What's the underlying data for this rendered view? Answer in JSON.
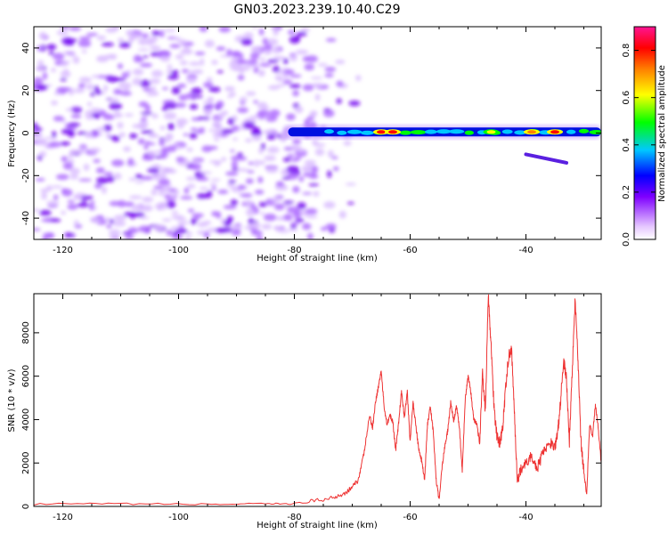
{
  "title": "GN03.2023.239.10.40.C29",
  "chart_data": [
    {
      "type": "heatmap",
      "xlabel": "Height of straight line (km)",
      "ylabel": "Frequency (Hz)",
      "xlim": [
        -125,
        -27
      ],
      "ylim": [
        -50,
        50
      ],
      "xticks": [
        -120,
        -100,
        -80,
        -60,
        -40
      ],
      "yticks": [
        -40,
        -20,
        0,
        20,
        40
      ],
      "colorbar": {
        "label": "Normalized spectral amplitude",
        "range": [
          0,
          0.9
        ],
        "ticks": [
          0.0,
          0.2,
          0.4,
          0.6,
          0.8
        ],
        "colormap": [
          "#ffffff",
          "#e6c8ff",
          "#7f00ff",
          "#0000ff",
          "#00c8ff",
          "#00ff00",
          "#ffff00",
          "#ff8000",
          "#ff0000",
          "#ff1493"
        ]
      },
      "signal_band": {
        "x_range": [
          -82,
          -27
        ],
        "frequency_hz": 0.5,
        "peaks": [
          {
            "x": -65,
            "amp": 0.85
          },
          {
            "x": -63,
            "amp": 0.85
          },
          {
            "x": -46,
            "amp": 0.7
          },
          {
            "x": -39,
            "amp": 0.8
          },
          {
            "x": -35,
            "amp": 0.85
          }
        ]
      },
      "noise_region": {
        "x_range": [
          -125,
          -70
        ],
        "amp": 0.2
      }
    },
    {
      "type": "line",
      "xlabel": "Height of straight line (km)",
      "ylabel": "SNR (10 * v/v)",
      "xlim": [
        -125,
        -27
      ],
      "ylim": [
        0,
        9800
      ],
      "xticks": [
        -120,
        -100,
        -80,
        -60,
        -40
      ],
      "yticks": [
        0,
        2000,
        4000,
        6000,
        8000
      ],
      "color": "#ee3333",
      "x": [
        -125,
        -110,
        -95,
        -85,
        -80,
        -76,
        -73,
        -71,
        -70,
        -69,
        -68,
        -67,
        -66.5,
        -66,
        -65.5,
        -65,
        -64.5,
        -64,
        -63.5,
        -63,
        -62.5,
        -62,
        -61.5,
        -61,
        -60.5,
        -60,
        -59.5,
        -59,
        -58.5,
        -58,
        -57.5,
        -57,
        -56.5,
        -56,
        -55.5,
        -55,
        -54.5,
        -54,
        -53.5,
        -53,
        -52.5,
        -52,
        -51.5,
        -51,
        -50.5,
        -50,
        -49.5,
        -49,
        -48.5,
        -48,
        -47.5,
        -47,
        -46.5,
        -46,
        -45.5,
        -45,
        -44.5,
        -44,
        -43.5,
        -43,
        -42.5,
        -42,
        -41.5,
        -41,
        -40,
        -39,
        -38,
        -37,
        -36,
        -35,
        -34.5,
        -34,
        -33.5,
        -33,
        -32.5,
        -32,
        -31.5,
        -31,
        -30.5,
        -30,
        -29.5,
        -29,
        -28.5,
        -28,
        -27.5,
        -27
      ],
      "values": [
        100,
        120,
        100,
        110,
        130,
        250,
        450,
        650,
        900,
        1200,
        2400,
        4200,
        3600,
        4800,
        5500,
        6250,
        4600,
        3800,
        4200,
        3900,
        2600,
        3800,
        5300,
        4100,
        5300,
        3000,
        4800,
        3700,
        2600,
        2100,
        1200,
        3800,
        4600,
        3400,
        1200,
        300,
        1800,
        2800,
        3500,
        4800,
        3900,
        4600,
        3700,
        1600,
        4900,
        6000,
        5200,
        4000,
        3800,
        2900,
        6200,
        4300,
        9800,
        7300,
        4500,
        3200,
        2900,
        3600,
        5500,
        6900,
        7300,
        4400,
        1200,
        1600,
        2000,
        2300,
        1800,
        2500,
        3000,
        2700,
        3400,
        4900,
        6700,
        5900,
        3000,
        6300,
        9600,
        6700,
        3000,
        1600,
        500,
        3800,
        3200,
        4700,
        3600,
        2000
      ]
    }
  ]
}
